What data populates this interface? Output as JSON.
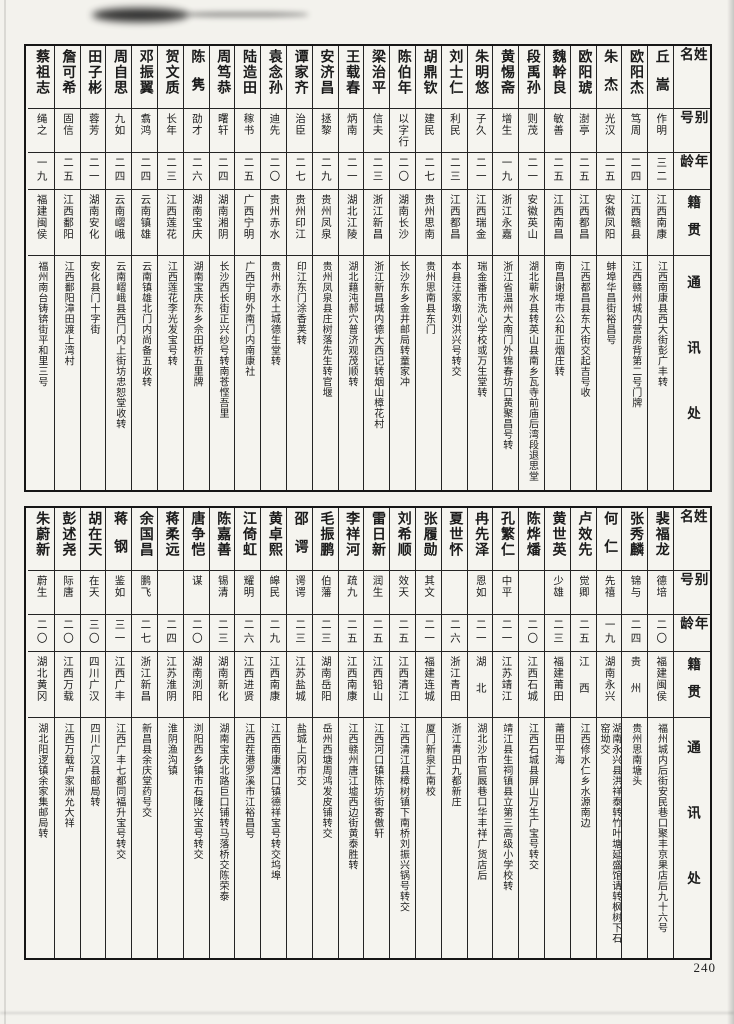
{
  "page": {
    "number": "240"
  },
  "headers": {
    "name": "姓名",
    "alias": "别号",
    "age": "年龄",
    "native": "籍贯",
    "address": "通讯处"
  },
  "tables": [
    {
      "people": [
        {
          "name": "丘嵩",
          "alias": "作明",
          "age": "三二",
          "native": "江西南康",
          "address": "江西南康县西大街彭广丰转"
        },
        {
          "name": "欧阳杰",
          "alias": "笃周",
          "age": "二四",
          "native": "江西赣县",
          "address": "江西赣州城内营房背第二号门牌"
        },
        {
          "name": "朱杰",
          "alias": "光汉",
          "age": "二五",
          "native": "安徽凤阳",
          "address": "蚌埠华昌街裕昌号"
        },
        {
          "name": "欧阳琥",
          "alias": "澍亭",
          "age": "二五",
          "native": "江西都昌",
          "address": "江西都昌县东大街交起吉号收"
        },
        {
          "name": "魏幹良",
          "alias": "敏善",
          "age": "二五",
          "native": "江西南昌",
          "address": "南昌谢埠市公和正烟庄转"
        },
        {
          "name": "段禹孙",
          "alias": "则茂",
          "age": "二一",
          "native": "安徽英山",
          "address": "湖北蕲水县转英山县南乡瓦寺前庙后湾段退思堂"
        },
        {
          "name": "黄惕斋",
          "alias": "增生",
          "age": "一九",
          "native": "浙江永嘉",
          "address": "浙江省温州大南门外锦春坊口黄聚昌号转"
        },
        {
          "name": "朱明悠",
          "alias": "子久",
          "age": "二一",
          "native": "江西瑞金",
          "address": "瑞金番市洗心学校或万生堂转"
        },
        {
          "name": "刘士仁",
          "alias": "利民",
          "age": "二三",
          "native": "江西都昌",
          "address": "本县汪家墩刘洪兴号转交"
        },
        {
          "name": "胡鼎钦",
          "alias": "建民",
          "age": "二七",
          "native": "贵州思南",
          "address": "贵州思南县东门"
        },
        {
          "name": "陈伯年",
          "alias": "以字行",
          "age": "二〇",
          "native": "湖南长沙",
          "address": "长沙东乡金井邮局转童家冲"
        },
        {
          "name": "梁治平",
          "alias": "信夫",
          "age": "二三",
          "native": "浙江新昌",
          "address": "浙江新昌城内德大西记转烟山樟花村"
        },
        {
          "name": "王载春",
          "alias": "炳南",
          "age": "二一",
          "native": "湖北江陵",
          "address": "湖北藉沌郝穴普济观茂顺转"
        },
        {
          "name": "安济昌",
          "alias": "拯黎",
          "age": "二九",
          "native": "贵州凤泉",
          "address": "贵州凤泉县庄树落先生转官堰"
        },
        {
          "name": "谭家齐",
          "alias": "治臣",
          "age": "二七",
          "native": "贵州印江",
          "address": "印江东门涂香荚转"
        },
        {
          "name": "袁念孙",
          "alias": "迪先",
          "age": "二〇",
          "native": "贵州赤水",
          "address": "贵州赤水土城德生堂转"
        },
        {
          "name": "陆造田",
          "alias": "稼书",
          "age": "二五",
          "native": "广西宁明",
          "address": "广西宁明外南门内南康社"
        },
        {
          "name": "周笃恭",
          "alias": "曙轩",
          "age": "二四",
          "native": "湖南湘阴",
          "address": "长沙西长街正兴纱号转南苍悭吾里"
        },
        {
          "name": "陈隽",
          "alias": "劭才",
          "age": "二六",
          "native": "湖南宝庆",
          "address": "湖南宝庆东乡佘田桥五里牌"
        },
        {
          "name": "贺文质",
          "alias": "长年",
          "age": "二三",
          "native": "江西莲花",
          "address": "江西莲花李光发宝号转"
        },
        {
          "name": "邓振翼",
          "alias": "翥鸿",
          "age": "二四",
          "native": "云南镇雄",
          "address": "云南镇雄北门内尚备五收转"
        },
        {
          "name": "周自思",
          "alias": "九如",
          "age": "二四",
          "native": "云南嶍峨",
          "address": "云南嶍峨县西门内上街坊忠恕堂收转"
        },
        {
          "name": "田子彬",
          "alias": "蓉芳",
          "age": "二一",
          "native": "湖南安化",
          "address": "安化县门十字街"
        },
        {
          "name": "詹可希",
          "alias": "固信",
          "age": "二五",
          "native": "江西鄱阳",
          "address": "江西鄱阳漳田渡上湾村"
        },
        {
          "name": "蔡祖志",
          "alias": "绳之",
          "age": "一九",
          "native": "福建闽侯",
          "address": "福州南台铸锛街平和里三号"
        }
      ]
    },
    {
      "people": [
        {
          "name": "裴福龙",
          "alias": "德培",
          "age": "二〇",
          "native": "福建闽侯",
          "address": "福州城内后街安民巷口聚丰京果店后九十六号"
        },
        {
          "name": "张秀麟",
          "alias": "锦与",
          "age": "二四",
          "native": "贵州",
          "address": "贵州思南塘头"
        },
        {
          "name": "何仁",
          "alias": "先禧",
          "age": "一九",
          "native": "湖南永兴",
          "address": "湖南永兴县洪祥泰转竹叶塘延盛馆请转枫树下石窑坳交"
        },
        {
          "name": "卢效先",
          "alias": "觉卿",
          "age": "二五",
          "native": "江西",
          "address": "江西修水仁乡水源南边"
        },
        {
          "name": "黄世英",
          "alias": "少雄",
          "age": "二三",
          "native": "福建莆田",
          "address": "莆田平海"
        },
        {
          "name": "陈烨燔",
          "alias": "",
          "age": "二〇",
          "native": "江西石城",
          "address": "江西石城县屏山万生广宝号转交"
        },
        {
          "name": "孔繁仁",
          "alias": "中平",
          "age": "二一",
          "native": "江苏靖江",
          "address": "靖江县生祠镇县立第三高级小学校转"
        },
        {
          "name": "冉先泽",
          "alias": "恩如",
          "age": "二一",
          "native": "湖北",
          "address": "湖北沙市官厩巷口华丰祥广货店后"
        },
        {
          "name": "夏世怀",
          "alias": "",
          "age": "二六",
          "native": "浙江青田",
          "address": "浙江青田九都新庄"
        },
        {
          "name": "张履勋",
          "alias": "其文",
          "age": "二一",
          "native": "福建连城",
          "address": "厦门新泉汇南校"
        },
        {
          "name": "刘希顺",
          "alias": "效天",
          "age": "二五",
          "native": "江西清江",
          "address": "江西清江县樟树镇下南桥刘振兴锅号转交"
        },
        {
          "name": "雷日新",
          "alias": "润生",
          "age": "二五",
          "native": "江西铅山",
          "address": "江西河口镇陈坊街寄傲轩"
        },
        {
          "name": "李祥河",
          "alias": "疏九",
          "age": "二五",
          "native": "江西南康",
          "address": "江西赣州唐江墟西边街黄泰胜转"
        },
        {
          "name": "毛振鹏",
          "alias": "伯藩",
          "age": "二三",
          "native": "湖南岳阳",
          "address": "岳州西塘周鸿发皮铺转交"
        },
        {
          "name": "邵谔",
          "alias": "谔谔",
          "age": "二三",
          "native": "江苏盐城",
          "address": "盐城上冈市交"
        },
        {
          "name": "黄卓熙",
          "alias": "皞民",
          "age": "二九",
          "native": "江西南康",
          "address": "江西南康潭口镇德祥宝号转交坞埠"
        },
        {
          "name": "江倚虹",
          "alias": "耀明",
          "age": "二六",
          "native": "江西进贤",
          "address": "江西茬港罗溪市江裕昌号"
        },
        {
          "name": "陈嘉善",
          "alias": "锡清",
          "age": "二三",
          "native": "湖南新化",
          "address": "湖南宝庆北路巨口铺转马落桥交陈荣泰"
        },
        {
          "name": "唐争恺",
          "alias": "谋",
          "age": "二〇",
          "native": "湖南浏阳",
          "address": "浏阳西乡镇市石隆兴宝号转交"
        },
        {
          "name": "蒋柔远",
          "alias": "",
          "age": "二四",
          "native": "江苏淮阴",
          "address": "淮阴渔沟镇"
        },
        {
          "name": "余国昌",
          "alias": "鹏飞",
          "age": "二七",
          "native": "浙江新昌",
          "address": "新昌县余庆堂药号交"
        },
        {
          "name": "蒋钢",
          "alias": "鉴如",
          "age": "三一",
          "native": "江西广丰",
          "address": "江西广丰七都同福升宝号转交"
        },
        {
          "name": "胡在天",
          "alias": "在天",
          "age": "三〇",
          "native": "四川广汉",
          "address": "四川广汉县邮局转"
        },
        {
          "name": "彭述尧",
          "alias": "际唐",
          "age": "二〇",
          "native": "江西万载",
          "address": "江西万载卢家洲允大祥"
        },
        {
          "name": "朱蔚新",
          "alias": "蔚生",
          "age": "二〇",
          "native": "湖北黄冈",
          "address": "湖北阳逻镇余家集邮局转"
        }
      ]
    }
  ]
}
